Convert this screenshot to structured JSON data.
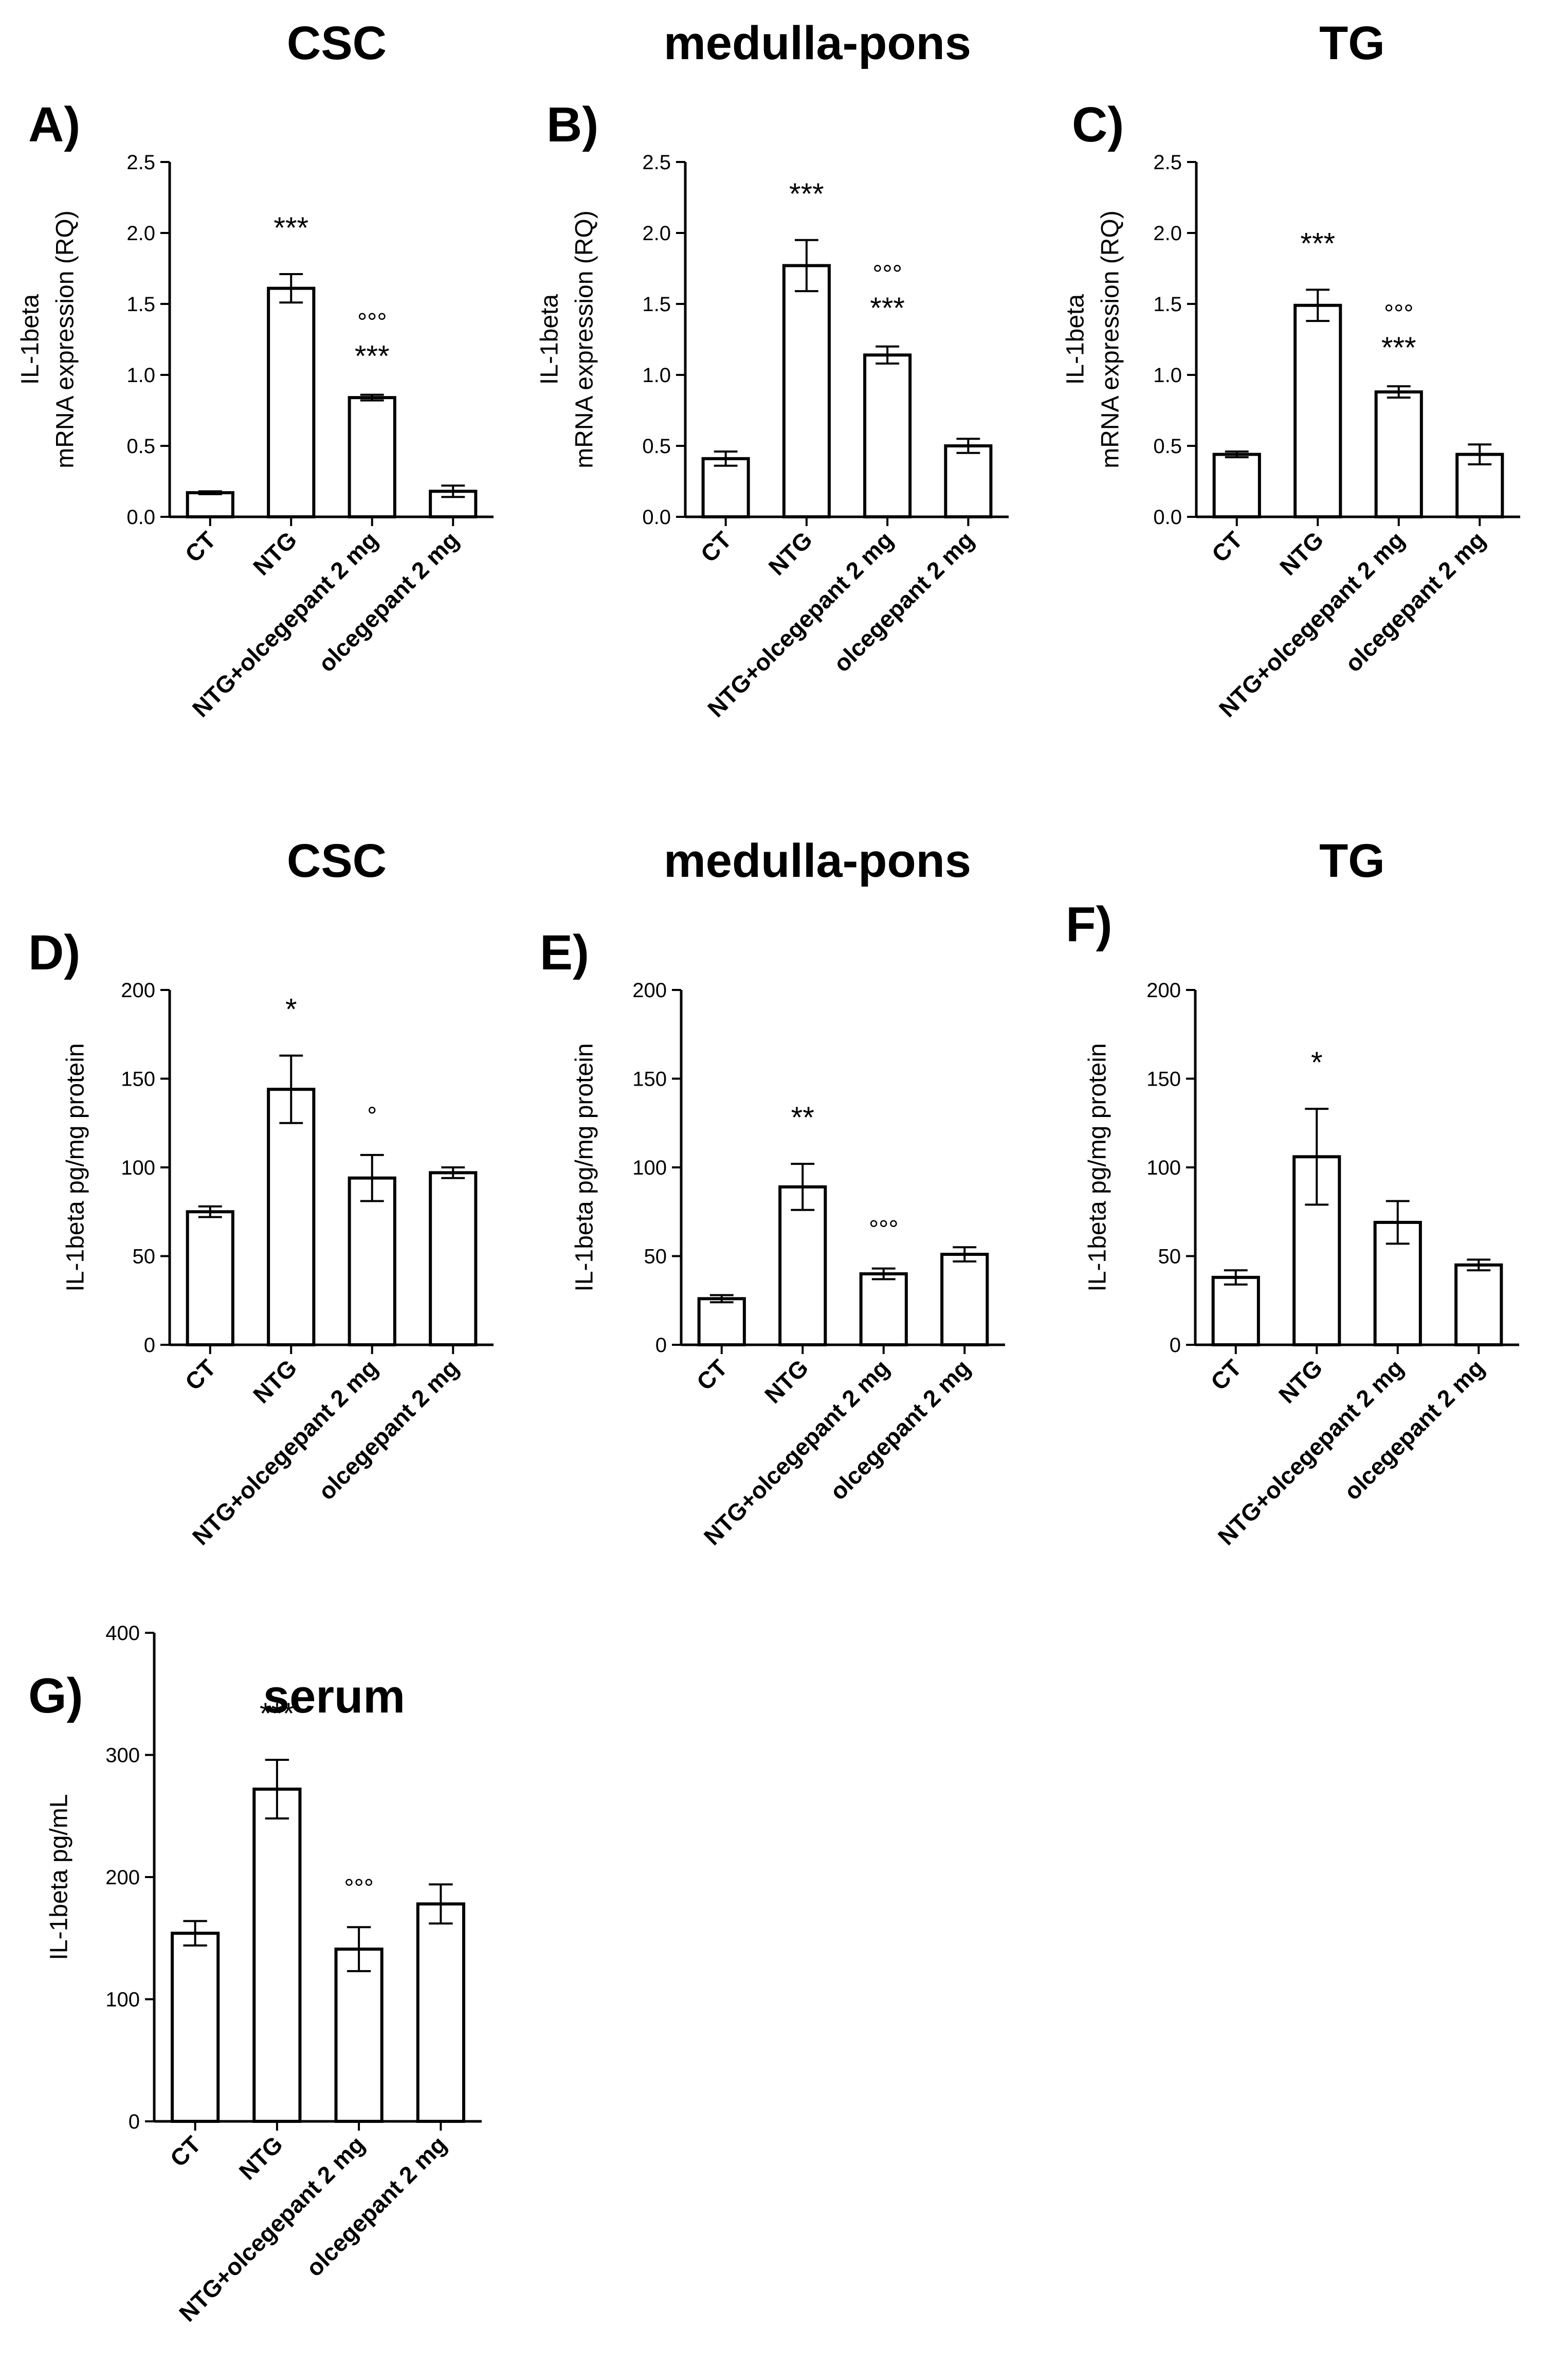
{
  "figure": {
    "colors": {
      "bar_fill": "#ffffff",
      "stroke": "#000000",
      "background": "#ffffff"
    }
  },
  "chart_data": [
    {
      "panel": "A)",
      "type": "bar",
      "title": "CSC",
      "ylabel": [
        "IL-1beta",
        "mRNA expression (RQ)"
      ],
      "ylim": [
        0,
        2.5
      ],
      "yticks": [
        0.0,
        0.5,
        1.0,
        1.5,
        2.0,
        2.5
      ],
      "ytick_labels": [
        "0.0",
        "0.5",
        "1.0",
        "1.5",
        "2.0",
        "2.5"
      ],
      "categories": [
        "CT",
        "NTG",
        "NTG+olcegepant 2 mg",
        "olcegepant 2 mg"
      ],
      "values": [
        0.17,
        1.61,
        0.84,
        0.18
      ],
      "errors": [
        0.01,
        0.1,
        0.02,
        0.04
      ],
      "annotations": [
        [
          "",
          ""
        ],
        [
          "***",
          ""
        ],
        [
          "°°°",
          "***"
        ],
        [
          "",
          ""
        ]
      ]
    },
    {
      "panel": "B)",
      "type": "bar",
      "title": "medulla-pons",
      "ylabel": [
        "IL-1beta",
        "mRNA expression (RQ)"
      ],
      "ylim": [
        0,
        2.5
      ],
      "yticks": [
        0.0,
        0.5,
        1.0,
        1.5,
        2.0,
        2.5
      ],
      "ytick_labels": [
        "0.0",
        "0.5",
        "1.0",
        "1.5",
        "2.0",
        "2.5"
      ],
      "categories": [
        "CT",
        "NTG",
        "NTG+olcegepant 2 mg",
        "olcegepant 2 mg"
      ],
      "values": [
        0.41,
        1.77,
        1.14,
        0.5
      ],
      "errors": [
        0.05,
        0.18,
        0.06,
        0.05
      ],
      "annotations": [
        [
          "",
          ""
        ],
        [
          "***",
          ""
        ],
        [
          "°°°",
          "***"
        ],
        [
          "",
          ""
        ]
      ]
    },
    {
      "panel": "C)",
      "type": "bar",
      "title": "TG",
      "ylabel": [
        "IL-1beta",
        "mRNA expression (RQ)"
      ],
      "ylim": [
        0,
        2.5
      ],
      "yticks": [
        0.0,
        0.5,
        1.0,
        1.5,
        2.0,
        2.5
      ],
      "ytick_labels": [
        "0.0",
        "0.5",
        "1.0",
        "1.5",
        "2.0",
        "2.5"
      ],
      "categories": [
        "CT",
        "NTG",
        "NTG+olcegepant 2 mg",
        "olcegepant 2 mg"
      ],
      "values": [
        0.44,
        1.49,
        0.88,
        0.44
      ],
      "errors": [
        0.02,
        0.11,
        0.04,
        0.07
      ],
      "annotations": [
        [
          "",
          ""
        ],
        [
          "***",
          ""
        ],
        [
          "°°°",
          "***"
        ],
        [
          "",
          ""
        ]
      ]
    },
    {
      "panel": "D)",
      "type": "bar",
      "title": "CSC",
      "ylabel": [
        "IL-1beta pg/mg protein"
      ],
      "ylim": [
        0,
        200
      ],
      "yticks": [
        0,
        50,
        100,
        150,
        200
      ],
      "ytick_labels": [
        "0",
        "50",
        "100",
        "150",
        "200"
      ],
      "categories": [
        "CT",
        "NTG",
        "NTG+olcegepant 2 mg",
        "olcegepant 2 mg"
      ],
      "values": [
        75,
        144,
        94,
        97
      ],
      "errors": [
        3,
        19,
        13,
        3
      ],
      "annotations": [
        [
          "",
          ""
        ],
        [
          "*",
          ""
        ],
        [
          "°",
          ""
        ],
        [
          "",
          ""
        ]
      ]
    },
    {
      "panel": "E)",
      "type": "bar",
      "title": "medulla-pons",
      "ylabel": [
        "IL-1beta pg/mg protein"
      ],
      "ylim": [
        0,
        200
      ],
      "yticks": [
        0,
        50,
        100,
        150,
        200
      ],
      "ytick_labels": [
        "0",
        "50",
        "100",
        "150",
        "200"
      ],
      "categories": [
        "CT",
        "NTG",
        "NTG+olcegepant 2 mg",
        "olcegepant 2 mg"
      ],
      "values": [
        26,
        89,
        40,
        51
      ],
      "errors": [
        2,
        13,
        3,
        4
      ],
      "annotations": [
        [
          "",
          ""
        ],
        [
          "**",
          ""
        ],
        [
          "°°°",
          ""
        ],
        [
          "",
          ""
        ]
      ]
    },
    {
      "panel": "F)",
      "type": "bar",
      "title": "TG",
      "ylabel": [
        "IL-1beta pg/mg protein"
      ],
      "ylim": [
        0,
        200
      ],
      "yticks": [
        0,
        50,
        100,
        150,
        200
      ],
      "ytick_labels": [
        "0",
        "50",
        "100",
        "150",
        "200"
      ],
      "categories": [
        "CT",
        "NTG",
        "NTG+olcegepant 2 mg",
        "olcegepant 2 mg"
      ],
      "values": [
        38,
        106,
        69,
        45
      ],
      "errors": [
        4,
        27,
        12,
        3
      ],
      "annotations": [
        [
          "",
          ""
        ],
        [
          "*",
          ""
        ],
        [
          "",
          ""
        ],
        [
          "",
          ""
        ]
      ]
    },
    {
      "panel": "G)",
      "type": "bar",
      "title": "serum",
      "ylabel": [
        "IL-1beta pg/mL"
      ],
      "ylim": [
        0,
        400
      ],
      "yticks": [
        0,
        100,
        200,
        300,
        400
      ],
      "ytick_labels": [
        "0",
        "100",
        "200",
        "300",
        "400"
      ],
      "categories": [
        "CT",
        "NTG",
        "NTG+olcegepant 2 mg",
        "olcegepant 2 mg"
      ],
      "values": [
        154,
        272,
        141,
        178
      ],
      "errors": [
        10,
        24,
        18,
        16
      ],
      "annotations": [
        [
          "",
          ""
        ],
        [
          "***",
          ""
        ],
        [
          "°°°",
          ""
        ],
        [
          "",
          ""
        ]
      ]
    }
  ]
}
